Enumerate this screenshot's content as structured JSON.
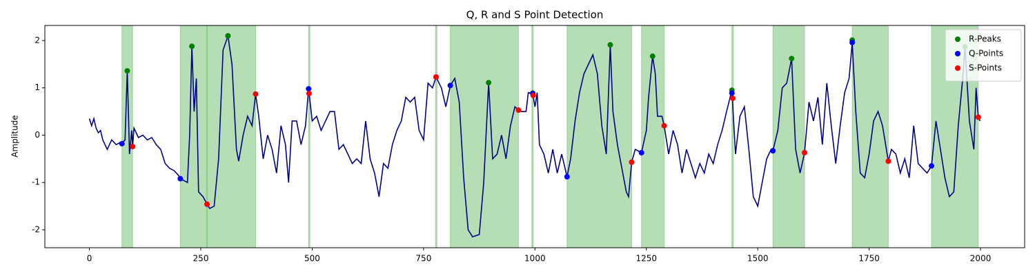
{
  "chart_data": {
    "type": "line",
    "title": "Q, R and S Point Detection",
    "y_label": "Amplitude",
    "xlim": [
      -100,
      2099
    ],
    "ylim": [
      -2.38,
      2.32
    ],
    "xticks": [
      0,
      250,
      500,
      750,
      1000,
      1250,
      1500,
      1750,
      2000
    ],
    "yticks": [
      -2,
      -1,
      0,
      1,
      2
    ],
    "color": "#00008b",
    "span_color": "#2ca02c",
    "legend": "upper right",
    "x": [
      0,
      5,
      10,
      15,
      20,
      25,
      30,
      40,
      50,
      60,
      70,
      73,
      80,
      85,
      90,
      95,
      97,
      100,
      110,
      120,
      130,
      140,
      150,
      160,
      170,
      180,
      190,
      200,
      204,
      210,
      220,
      225,
      230,
      235,
      240,
      245,
      255,
      264,
      270,
      280,
      290,
      300,
      311,
      320,
      330,
      335,
      345,
      355,
      365,
      373,
      380,
      390,
      400,
      410,
      420,
      430,
      440,
      447,
      455,
      465,
      475,
      485,
      492,
      500,
      510,
      520,
      530,
      540,
      550,
      560,
      570,
      580,
      590,
      600,
      610,
      620,
      630,
      640,
      650,
      660,
      670,
      680,
      690,
      700,
      710,
      720,
      730,
      740,
      750,
      760,
      770,
      778,
      790,
      800,
      810,
      820,
      830,
      840,
      850,
      860,
      875,
      885,
      896,
      905,
      915,
      925,
      935,
      945,
      955,
      963,
      970,
      980,
      985,
      995,
      1000,
      1005,
      1010,
      1020,
      1030,
      1040,
      1050,
      1060,
      1072,
      1080,
      1090,
      1100,
      1110,
      1120,
      1130,
      1140,
      1150,
      1160,
      1169,
      1175,
      1185,
      1195,
      1205,
      1210,
      1217,
      1225,
      1239,
      1250,
      1255,
      1264,
      1270,
      1275,
      1285,
      1290,
      1300,
      1310,
      1320,
      1330,
      1340,
      1350,
      1360,
      1370,
      1380,
      1390,
      1400,
      1410,
      1420,
      1430,
      1442,
      1450,
      1460,
      1470,
      1480,
      1490,
      1500,
      1510,
      1520,
      1530,
      1534,
      1545,
      1555,
      1565,
      1576,
      1585,
      1595,
      1605,
      1615,
      1625,
      1635,
      1645,
      1655,
      1665,
      1675,
      1685,
      1695,
      1705,
      1712,
      1720,
      1730,
      1740,
      1750,
      1760,
      1770,
      1780,
      1793,
      1800,
      1810,
      1820,
      1830,
      1840,
      1850,
      1860,
      1870,
      1880,
      1890,
      1900,
      1910,
      1920,
      1930,
      1940,
      1950,
      1960,
      1965,
      1975,
      1985,
      1990,
      1995,
      1999
    ],
    "values": [
      0.35,
      0.2,
      0.35,
      0.15,
      0.05,
      0.1,
      -0.1,
      -0.3,
      -0.1,
      -0.2,
      -0.15,
      -0.18,
      -0.1,
      1.36,
      -0.4,
      0.1,
      -0.24,
      0.15,
      -0.05,
      0.0,
      -0.1,
      -0.05,
      -0.2,
      -0.3,
      -0.6,
      -0.7,
      -0.75,
      -0.85,
      -0.92,
      -0.95,
      -1.0,
      0.0,
      1.88,
      0.5,
      1.2,
      -1.2,
      -1.3,
      -1.46,
      -1.55,
      -1.5,
      -0.5,
      1.8,
      2.1,
      1.5,
      -0.3,
      -0.55,
      0.0,
      0.4,
      0.2,
      0.87,
      0.4,
      -0.5,
      0.0,
      -0.3,
      -0.8,
      0.2,
      -0.2,
      -1.0,
      0.3,
      0.3,
      -0.2,
      0.2,
      0.98,
      0.3,
      0.4,
      0.1,
      0.3,
      0.5,
      0.5,
      -0.3,
      -0.2,
      -0.4,
      -0.6,
      -0.5,
      -0.6,
      0.3,
      -0.5,
      -0.8,
      -1.3,
      -0.6,
      -0.7,
      -0.2,
      0.1,
      0.3,
      0.8,
      0.7,
      0.8,
      0.1,
      -0.1,
      1.1,
      1.0,
      1.23,
      1.0,
      0.6,
      1.05,
      1.2,
      0.7,
      -0.9,
      -2.0,
      -2.15,
      -2.1,
      -1.0,
      1.11,
      -0.5,
      -0.4,
      0.0,
      -0.5,
      0.2,
      0.6,
      0.53,
      0.5,
      0.5,
      0.9,
      0.88,
      0.6,
      0.9,
      -0.2,
      -0.4,
      -0.8,
      -0.3,
      -0.8,
      -0.4,
      -0.88,
      -0.5,
      0.3,
      0.9,
      1.3,
      1.5,
      1.7,
      1.3,
      0.2,
      -0.4,
      1.91,
      0.5,
      -0.2,
      -0.7,
      -1.2,
      -1.3,
      -0.57,
      -0.3,
      -0.37,
      0.1,
      0.8,
      1.67,
      1.3,
      0.4,
      0.4,
      0.2,
      -0.4,
      0.1,
      -0.2,
      -0.8,
      -0.3,
      -0.6,
      -0.9,
      -0.6,
      -0.8,
      -0.4,
      -0.6,
      -0.2,
      0.1,
      0.5,
      0.95,
      -0.4,
      0.4,
      0.6,
      -0.3,
      -1.3,
      -1.5,
      -1.0,
      -0.5,
      -0.3,
      -0.33,
      0.1,
      1.0,
      1.1,
      1.62,
      -0.3,
      -0.8,
      -0.37,
      0.7,
      0.3,
      0.8,
      -0.2,
      1.1,
      0.2,
      -0.6,
      0.2,
      0.9,
      1.2,
      1.96,
      0.5,
      -0.8,
      -0.9,
      -0.4,
      0.3,
      0.5,
      0.2,
      -0.55,
      -0.3,
      -0.4,
      -0.8,
      -0.5,
      -0.9,
      0.2,
      -0.6,
      -0.7,
      -0.8,
      -0.65,
      0.3,
      -0.3,
      -0.9,
      -1.3,
      -1.2,
      0.2,
      1.2,
      1.87,
      0.3,
      -0.3,
      1.0,
      0.38,
      0.3
    ],
    "spans": [
      [
        73,
        97
      ],
      [
        204,
        264
      ],
      [
        264,
        373
      ],
      [
        492,
        495
      ],
      [
        777,
        780
      ],
      [
        810,
        963
      ],
      [
        993,
        996
      ],
      [
        1072,
        1217
      ],
      [
        1239,
        1290
      ],
      [
        1442,
        1445
      ],
      [
        1534,
        1605
      ],
      [
        1712,
        1793
      ],
      [
        1890,
        1995
      ]
    ],
    "points": [
      {
        "name": "R-Peaks",
        "color": "#008000",
        "x": [
          85,
          230,
          311,
          778,
          896,
          995,
          1169,
          1264,
          1442,
          1576,
          1712,
          1965
        ],
        "values": [
          1.36,
          1.88,
          2.1,
          1.23,
          1.11,
          0.89,
          1.91,
          1.67,
          0.95,
          1.62,
          2.01,
          1.87
        ]
      },
      {
        "name": "Q-Points",
        "color": "#0000ff",
        "x": [
          73,
          204,
          492,
          810,
          995,
          1072,
          1239,
          1442,
          1534,
          1712,
          1890
        ],
        "values": [
          -0.18,
          -0.92,
          0.98,
          1.05,
          0.88,
          -0.88,
          -0.37,
          0.89,
          -0.33,
          1.96,
          -0.65
        ]
      },
      {
        "name": "S-Points",
        "color": "#ff0000",
        "x": [
          97,
          264,
          373,
          493,
          778,
          963,
          996,
          1217,
          1290,
          1444,
          1605,
          1793,
          1995
        ],
        "values": [
          -0.24,
          -1.46,
          0.87,
          0.88,
          1.23,
          0.53,
          0.84,
          -0.57,
          0.2,
          0.78,
          -0.37,
          -0.55,
          0.38
        ]
      }
    ]
  }
}
